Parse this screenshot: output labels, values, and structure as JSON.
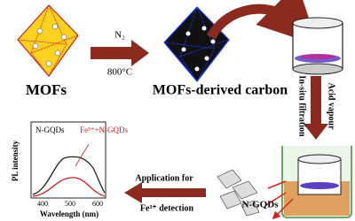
{
  "steps": {
    "mof": {
      "label": "MOFs"
    },
    "conditions": {
      "gas": "N₂",
      "temperature": "800°C"
    },
    "carbon": {
      "label": "MOFs-derived carbon"
    },
    "treatment": {
      "acid": "Acid vapour",
      "filtration": "In-situ filtration"
    },
    "product": {
      "label": "N-GQDs"
    },
    "application": {
      "line1": "Application for",
      "line2": "Fe³⁺ detection"
    }
  },
  "inset": {
    "y_label": "PL intensity",
    "x_label": "Wavelength (nm)",
    "x_ticks": [
      400,
      500,
      600
    ],
    "series": {
      "blank": "N-GQDs",
      "with_fe": "Fe³⁺+N-GQDs"
    }
  }
}
